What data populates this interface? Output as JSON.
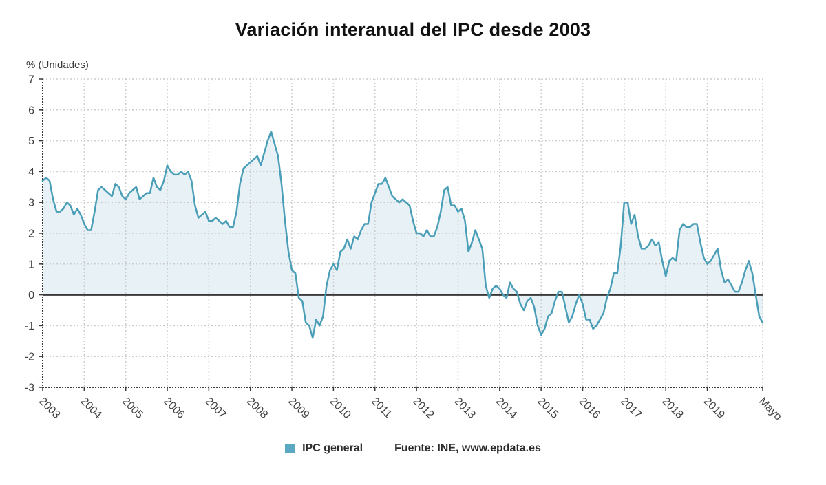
{
  "header": {
    "title": "Variación interanual del IPC desde 2003"
  },
  "axis_unit_label": "% (Unidades)",
  "legend": {
    "series_label": "IPC general",
    "source": "Fuente: INE, www.epdata.es",
    "swatch_color": "#5ba8c2"
  },
  "chart_data": {
    "type": "area",
    "title": "Variación interanual del IPC desde 2003",
    "xlabel": "",
    "ylabel": "% (Unidades)",
    "ylim": [
      -3,
      7
    ],
    "yticks": [
      -3,
      -2,
      -1,
      0,
      1,
      2,
      3,
      4,
      5,
      6,
      7
    ],
    "grid": true,
    "legend_position": "bottom",
    "frequency": "monthly",
    "x_start": "2003-01",
    "x_end": "2020-05",
    "x_tick_labels": [
      "2003",
      "2004",
      "2005",
      "2006",
      "2007",
      "2008",
      "2009",
      "2010",
      "2011",
      "2012",
      "2013",
      "2014",
      "2015",
      "2016",
      "2017",
      "2018",
      "2019",
      "Mayo"
    ],
    "x_tick_indices": [
      0,
      12,
      24,
      36,
      48,
      60,
      72,
      84,
      96,
      108,
      120,
      132,
      144,
      156,
      168,
      180,
      192,
      208
    ],
    "series": [
      {
        "name": "IPC general",
        "values": [
          3.7,
          3.8,
          3.7,
          3.1,
          2.7,
          2.7,
          2.8,
          3.0,
          2.9,
          2.6,
          2.8,
          2.6,
          2.3,
          2.1,
          2.1,
          2.7,
          3.4,
          3.5,
          3.4,
          3.3,
          3.2,
          3.6,
          3.5,
          3.2,
          3.1,
          3.3,
          3.4,
          3.5,
          3.1,
          3.2,
          3.3,
          3.3,
          3.8,
          3.5,
          3.4,
          3.7,
          4.2,
          4.0,
          3.9,
          3.9,
          4.0,
          3.9,
          4.0,
          3.7,
          2.9,
          2.5,
          2.6,
          2.7,
          2.4,
          2.4,
          2.5,
          2.4,
          2.3,
          2.4,
          2.2,
          2.2,
          2.7,
          3.6,
          4.1,
          4.2,
          4.3,
          4.4,
          4.5,
          4.2,
          4.6,
          5.0,
          5.3,
          4.9,
          4.5,
          3.6,
          2.4,
          1.4,
          0.8,
          0.7,
          -0.1,
          -0.2,
          -0.9,
          -1.0,
          -1.4,
          -0.8,
          -1.0,
          -0.7,
          0.3,
          0.8,
          1.0,
          0.8,
          1.4,
          1.5,
          1.8,
          1.5,
          1.9,
          1.8,
          2.1,
          2.3,
          2.3,
          3.0,
          3.3,
          3.6,
          3.6,
          3.8,
          3.5,
          3.2,
          3.1,
          3.0,
          3.1,
          3.0,
          2.9,
          2.4,
          2.0,
          2.0,
          1.9,
          2.1,
          1.9,
          1.9,
          2.2,
          2.7,
          3.4,
          3.5,
          2.9,
          2.9,
          2.7,
          2.8,
          2.4,
          1.4,
          1.7,
          2.1,
          1.8,
          1.5,
          0.3,
          -0.1,
          0.2,
          0.3,
          0.2,
          0.0,
          -0.1,
          0.4,
          0.2,
          0.1,
          -0.3,
          -0.5,
          -0.2,
          -0.1,
          -0.4,
          -1.0,
          -1.3,
          -1.1,
          -0.7,
          -0.6,
          -0.2,
          0.1,
          0.1,
          -0.4,
          -0.9,
          -0.7,
          -0.3,
          0.0,
          -0.3,
          -0.8,
          -0.8,
          -1.1,
          -1.0,
          -0.8,
          -0.6,
          -0.1,
          0.2,
          0.7,
          0.7,
          1.6,
          3.0,
          3.0,
          2.3,
          2.6,
          1.9,
          1.5,
          1.5,
          1.6,
          1.8,
          1.6,
          1.7,
          1.1,
          0.6,
          1.1,
          1.2,
          1.1,
          2.1,
          2.3,
          2.2,
          2.2,
          2.3,
          2.3,
          1.7,
          1.2,
          1.0,
          1.1,
          1.3,
          1.5,
          0.8,
          0.4,
          0.5,
          0.3,
          0.1,
          0.1,
          0.4,
          0.8,
          1.1,
          0.7,
          0.0,
          -0.7,
          -0.9
        ]
      }
    ],
    "colors": {
      "line": "#4a9eb7",
      "fill": "rgba(77,158,183,0.13)",
      "zero_line": "#3a3a3a",
      "grid": "#cccccc",
      "axis": "#3a3a3a",
      "tick_text": "#3f3f3f"
    }
  }
}
